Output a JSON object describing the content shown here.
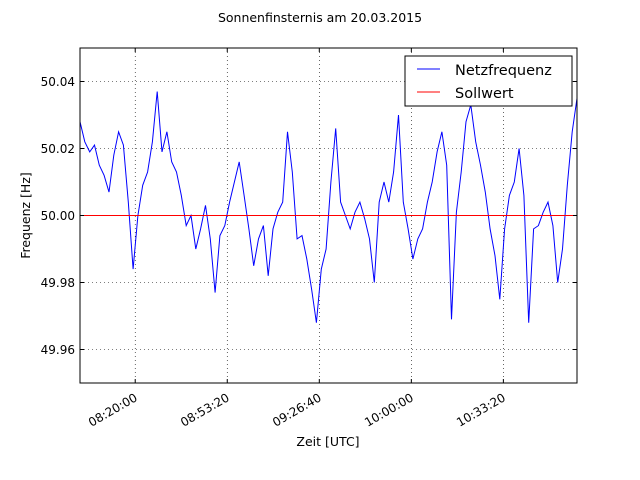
{
  "chart_data": {
    "type": "line",
    "title": "Sonnenfinsternis am 20.03.2015",
    "xlabel": "Zeit [UTC]",
    "ylabel": "Frequenz [Hz]",
    "x_start": "08:00:00",
    "x_end": "11:00:00",
    "xlim_seconds_since_start": [
      0,
      10800
    ],
    "ylim": [
      49.95,
      50.05
    ],
    "grid": true,
    "legend_position": "top-right",
    "xticks": [
      {
        "seconds": 1200,
        "label": "08:20:00"
      },
      {
        "seconds": 3200,
        "label": "08:53:20"
      },
      {
        "seconds": 5200,
        "label": "09:26:40"
      },
      {
        "seconds": 7200,
        "label": "10:00:00"
      },
      {
        "seconds": 9200,
        "label": "10:33:20"
      }
    ],
    "yticks": [
      {
        "value": 49.96,
        "label": "49.96"
      },
      {
        "value": 49.98,
        "label": "49.98"
      },
      {
        "value": 50.0,
        "label": "50.00"
      },
      {
        "value": 50.02,
        "label": "50.02"
      },
      {
        "value": 50.04,
        "label": "50.04"
      }
    ],
    "series": [
      {
        "name": "Netzfrequenz",
        "color": "#0000ff",
        "values": [
          50.028,
          50.022,
          50.019,
          50.021,
          50.015,
          50.012,
          50.007,
          50.018,
          50.025,
          50.021,
          50.004,
          49.984,
          50.0,
          50.009,
          50.013,
          50.022,
          50.037,
          50.019,
          50.025,
          50.016,
          50.013,
          50.006,
          49.997,
          50.0,
          49.99,
          49.996,
          50.003,
          49.993,
          49.977,
          49.994,
          49.997,
          50.004,
          50.01,
          50.016,
          50.006,
          49.996,
          49.985,
          49.993,
          49.997,
          49.982,
          49.996,
          50.001,
          50.004,
          50.025,
          50.013,
          49.993,
          49.994,
          49.987,
          49.978,
          49.968,
          49.984,
          49.99,
          50.01,
          50.026,
          50.004,
          50.0,
          49.996,
          50.001,
          50.004,
          49.999,
          49.993,
          49.98,
          50.004,
          50.01,
          50.004,
          50.013,
          50.03,
          50.004,
          49.996,
          49.987,
          49.993,
          49.996,
          50.004,
          50.01,
          50.019,
          50.025,
          50.015,
          49.969,
          50.001,
          50.013,
          50.028,
          50.033,
          50.022,
          50.015,
          50.007,
          49.996,
          49.988,
          49.975,
          49.996,
          50.006,
          50.01,
          50.02,
          50.006,
          49.968,
          49.996,
          49.997,
          50.001,
          50.004,
          49.997,
          49.98,
          49.99,
          50.009,
          50.025,
          50.035
        ]
      },
      {
        "name": "Sollwert",
        "color": "#ff0000",
        "values": [
          50.0,
          50.0
        ]
      }
    ]
  }
}
